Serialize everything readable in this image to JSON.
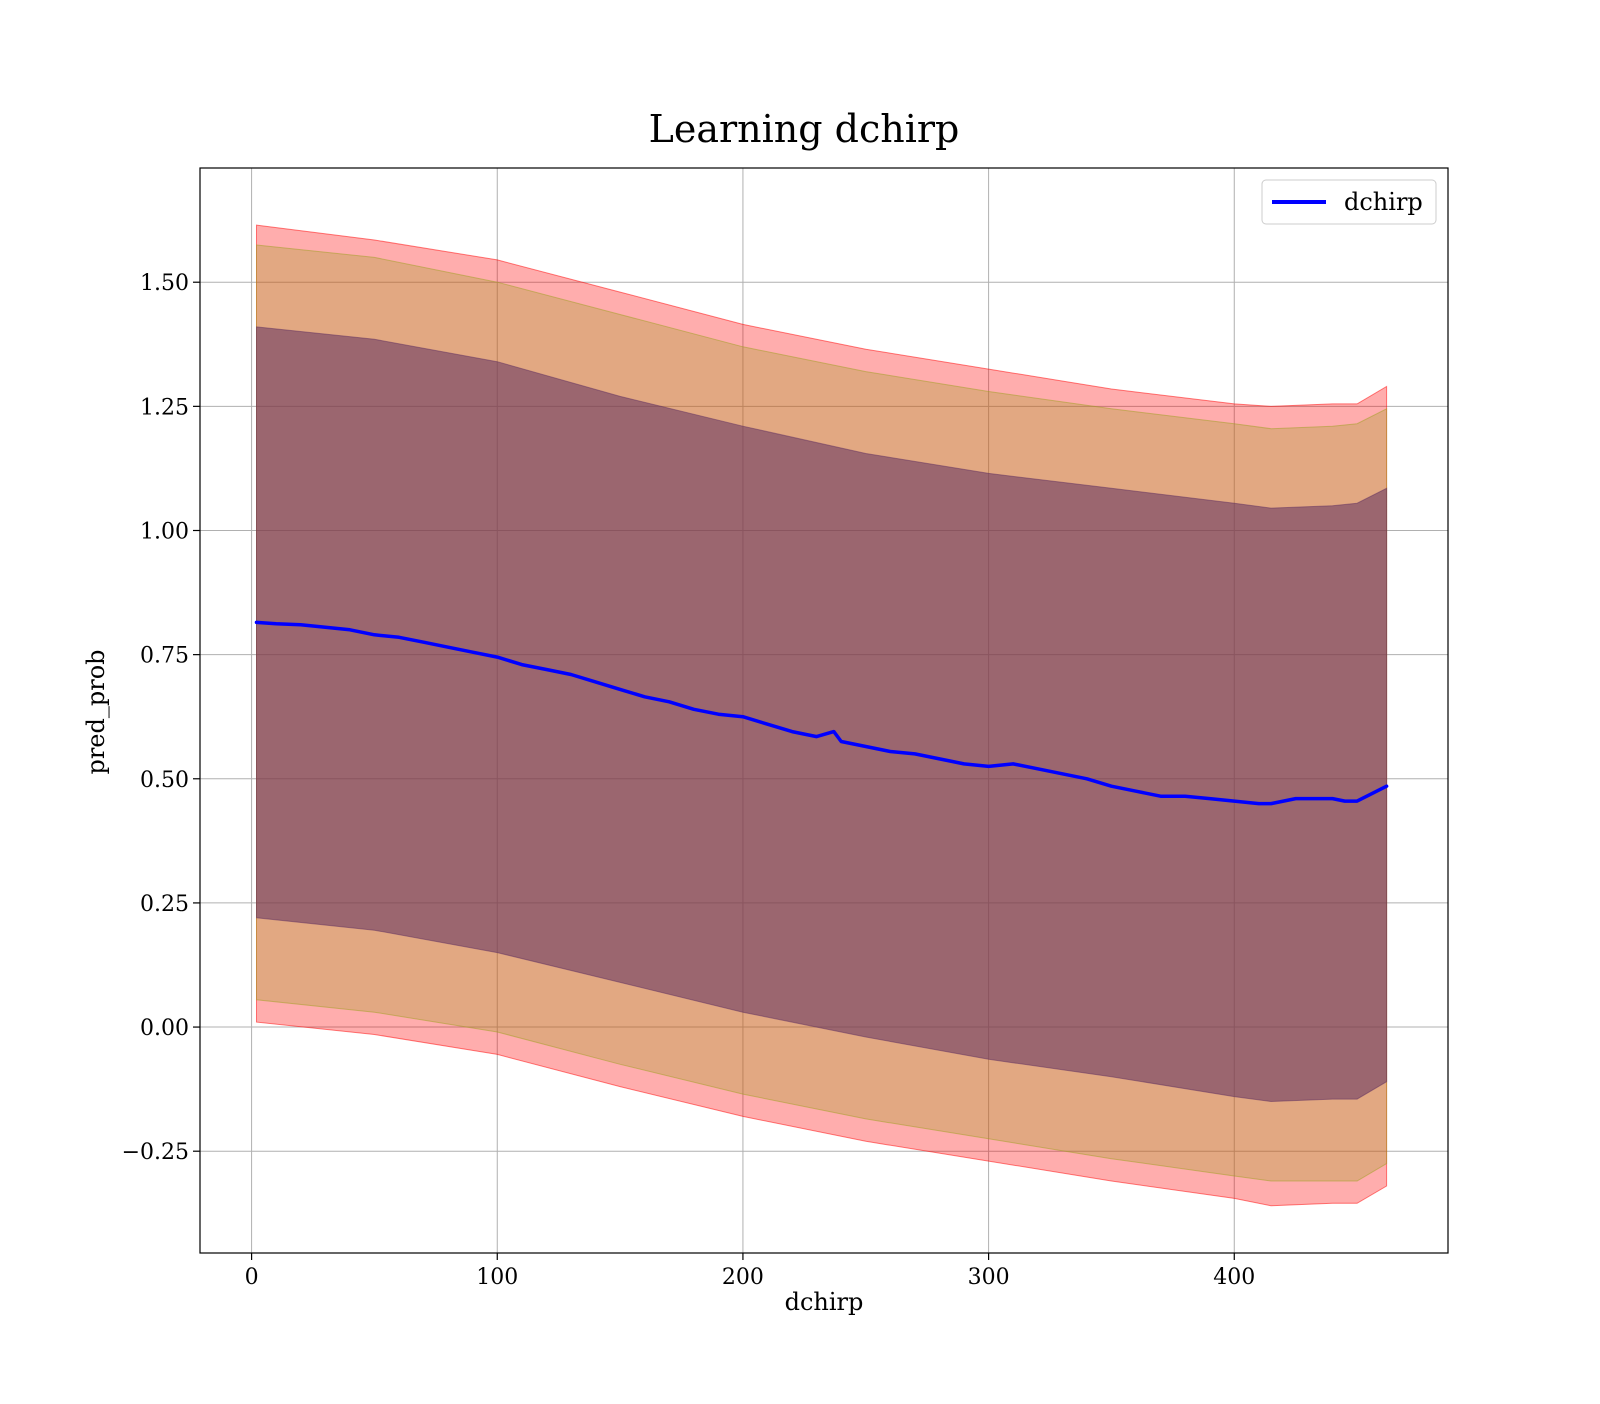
{
  "chart_data": {
    "type": "line",
    "title": "Learning dchirp",
    "xlabel": "dchirp",
    "ylabel": "pred_prob",
    "xlim": [
      -21,
      487
    ],
    "ylim": [
      -0.455,
      1.73
    ],
    "xticks": [
      0,
      100,
      200,
      300,
      400
    ],
    "xtick_labels": [
      "0",
      "100",
      "200",
      "300",
      "400"
    ],
    "yticks": [
      -0.25,
      0.0,
      0.25,
      0.5,
      0.75,
      1.0,
      1.25,
      1.5
    ],
    "ytick_labels": [
      "−0.25",
      "0.00",
      "0.25",
      "0.50",
      "0.75",
      "1.00",
      "1.25",
      "1.50"
    ],
    "grid": true,
    "legend_position": "upper-right",
    "series": [
      {
        "name": "dchirp",
        "color": "#0000ff",
        "x": [
          2,
          10,
          20,
          30,
          40,
          50,
          60,
          70,
          80,
          90,
          100,
          110,
          120,
          130,
          140,
          150,
          160,
          170,
          180,
          190,
          200,
          210,
          220,
          230,
          237,
          240,
          250,
          260,
          270,
          280,
          290,
          300,
          310,
          320,
          330,
          340,
          350,
          360,
          370,
          380,
          390,
          400,
          410,
          415,
          420,
          425,
          430,
          440,
          445,
          450,
          462
        ],
        "y": [
          0.815,
          0.812,
          0.81,
          0.805,
          0.8,
          0.79,
          0.785,
          0.775,
          0.765,
          0.755,
          0.745,
          0.73,
          0.72,
          0.71,
          0.695,
          0.68,
          0.665,
          0.655,
          0.64,
          0.63,
          0.625,
          0.61,
          0.595,
          0.585,
          0.595,
          0.575,
          0.565,
          0.555,
          0.55,
          0.54,
          0.53,
          0.525,
          0.53,
          0.52,
          0.51,
          0.5,
          0.485,
          0.475,
          0.465,
          0.465,
          0.46,
          0.455,
          0.45,
          0.45,
          0.455,
          0.46,
          0.46,
          0.46,
          0.455,
          0.455,
          0.485
        ]
      }
    ],
    "bands": [
      {
        "name": "outer",
        "color": "#ff0000",
        "opacity": 0.32,
        "x": [
          2,
          50,
          100,
          150,
          200,
          250,
          300,
          350,
          400,
          415,
          440,
          450,
          462
        ],
        "upper": [
          1.615,
          1.585,
          1.545,
          1.48,
          1.415,
          1.365,
          1.325,
          1.285,
          1.255,
          1.25,
          1.255,
          1.255,
          1.29
        ],
        "lower": [
          0.01,
          -0.015,
          -0.055,
          -0.12,
          -0.18,
          -0.23,
          -0.27,
          -0.31,
          -0.345,
          -0.36,
          -0.355,
          -0.355,
          -0.32
        ]
      },
      {
        "name": "middle",
        "color": "#a0a020",
        "opacity": 0.3,
        "x": [
          2,
          50,
          100,
          150,
          200,
          250,
          300,
          350,
          400,
          415,
          440,
          450,
          462
        ],
        "upper": [
          1.575,
          1.55,
          1.5,
          1.435,
          1.37,
          1.32,
          1.28,
          1.245,
          1.215,
          1.205,
          1.21,
          1.215,
          1.245
        ],
        "lower": [
          0.055,
          0.03,
          -0.01,
          -0.075,
          -0.135,
          -0.185,
          -0.225,
          -0.265,
          -0.3,
          -0.31,
          -0.31,
          -0.31,
          -0.275
        ]
      },
      {
        "name": "inner",
        "color": "#603060",
        "opacity": 0.55,
        "x": [
          2,
          50,
          100,
          150,
          200,
          250,
          300,
          350,
          400,
          415,
          440,
          450,
          462
        ],
        "upper": [
          1.41,
          1.385,
          1.34,
          1.27,
          1.21,
          1.155,
          1.115,
          1.085,
          1.055,
          1.045,
          1.05,
          1.055,
          1.085
        ],
        "lower": [
          0.22,
          0.195,
          0.15,
          0.09,
          0.03,
          -0.02,
          -0.065,
          -0.1,
          -0.14,
          -0.15,
          -0.145,
          -0.145,
          -0.11
        ]
      }
    ]
  }
}
